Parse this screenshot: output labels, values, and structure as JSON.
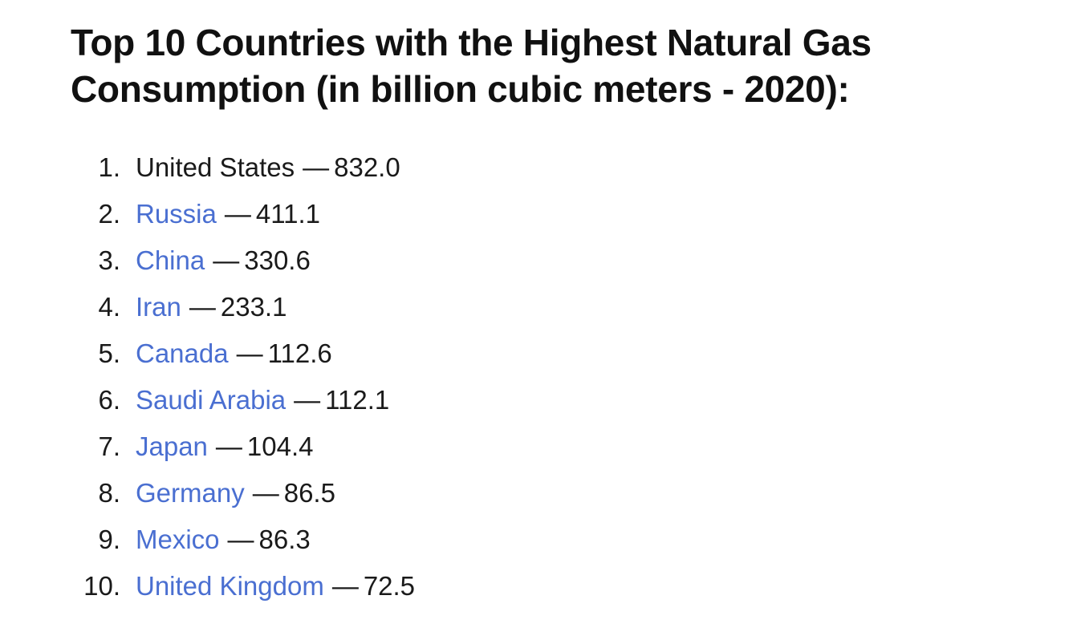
{
  "heading": "Top 10 Countries with the Highest Natural Gas Consumption (in billion cubic meters - 2020):",
  "separator": "—",
  "items": [
    {
      "rank": "1.",
      "country": "United States",
      "value": "832.0",
      "link": false
    },
    {
      "rank": "2.",
      "country": "Russia",
      "value": "411.1",
      "link": true
    },
    {
      "rank": "3.",
      "country": "China",
      "value": "330.6",
      "link": true
    },
    {
      "rank": "4.",
      "country": "Iran",
      "value": "233.1",
      "link": true
    },
    {
      "rank": "5.",
      "country": "Canada",
      "value": "112.6",
      "link": true
    },
    {
      "rank": "6.",
      "country": "Saudi Arabia",
      "value": "112.1",
      "link": true
    },
    {
      "rank": "7.",
      "country": "Japan",
      "value": "104.4",
      "link": true
    },
    {
      "rank": "8.",
      "country": "Germany",
      "value": "86.5",
      "link": true
    },
    {
      "rank": "9.",
      "country": "Mexico",
      "value": "86.3",
      "link": true
    },
    {
      "rank": "10.",
      "country": "United Kingdom",
      "value": "72.5",
      "link": true
    }
  ],
  "colors": {
    "link": "#4a6fd1",
    "text": "#1a1a1a"
  }
}
